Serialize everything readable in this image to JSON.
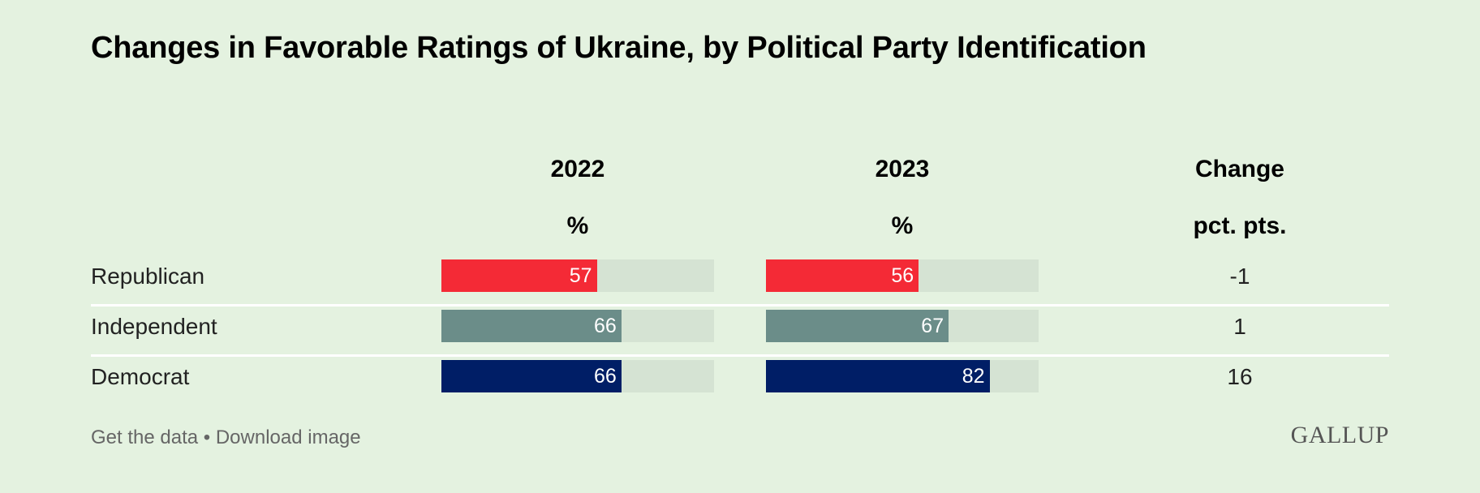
{
  "chart_data": {
    "type": "table",
    "title": "Changes in Favorable Ratings of Ukraine, by Political Party Identification",
    "columns": [
      {
        "header": "2022",
        "unit": "%"
      },
      {
        "header": "2023",
        "unit": "%"
      },
      {
        "header": "Change",
        "unit": "pct. pts."
      }
    ],
    "categories": [
      "Republican",
      "Independent",
      "Democrat"
    ],
    "series": [
      {
        "name": "2022",
        "values": [
          57,
          66,
          66
        ]
      },
      {
        "name": "2023",
        "values": [
          56,
          67,
          82
        ]
      }
    ],
    "change": [
      "-1",
      "1",
      "16"
    ],
    "bar_max": 100,
    "colors": {
      "Republican": "#f42a36",
      "Independent": "#6b8d89",
      "Democrat": "#001e66"
    }
  },
  "footer": {
    "get_data": "Get the data",
    "separator": "•",
    "download": "Download image"
  },
  "logo": "GALLUP"
}
